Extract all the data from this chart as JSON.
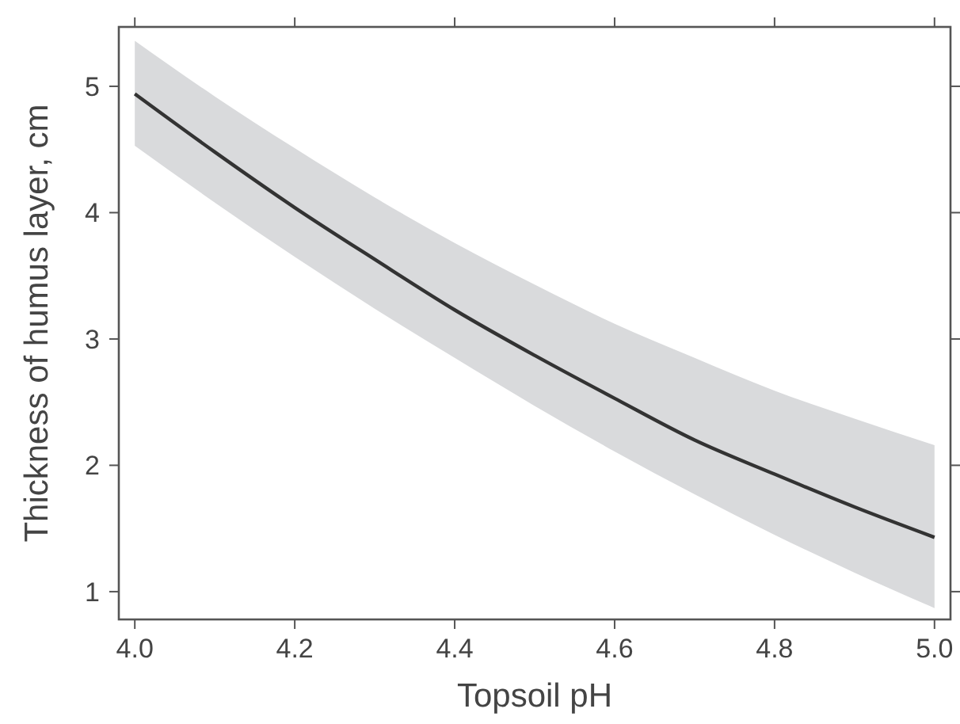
{
  "chart_data": {
    "type": "line",
    "xlabel": "Topsoil pH",
    "ylabel": "Thickness of humus layer, cm",
    "x": [
      4.0,
      4.1,
      4.2,
      4.3,
      4.4,
      4.5,
      4.6,
      4.7,
      4.8,
      4.9,
      5.0
    ],
    "series": [
      {
        "color": "#333333",
        "values": [
          4.94,
          4.48,
          4.04,
          3.63,
          3.23,
          2.87,
          2.53,
          2.2,
          1.93,
          1.67,
          1.43
        ],
        "lower": [
          4.53,
          4.08,
          3.65,
          3.24,
          2.85,
          2.47,
          2.11,
          1.77,
          1.45,
          1.15,
          0.87
        ],
        "upper": [
          5.36,
          4.92,
          4.51,
          4.12,
          3.76,
          3.43,
          3.12,
          2.85,
          2.59,
          2.37,
          2.16
        ]
      }
    ],
    "xlim": [
      3.98,
      5.02
    ],
    "ylim": [
      0.78,
      5.47
    ],
    "xticks": [
      {
        "value": 4,
        "label": "4.0"
      },
      4.2,
      4.4,
      4.6,
      4.8,
      {
        "value": 5,
        "label": "5.0"
      }
    ],
    "yticks": [
      1,
      2,
      3,
      4,
      5
    ],
    "grid": false,
    "marker": "none",
    "line_style": "solid"
  }
}
